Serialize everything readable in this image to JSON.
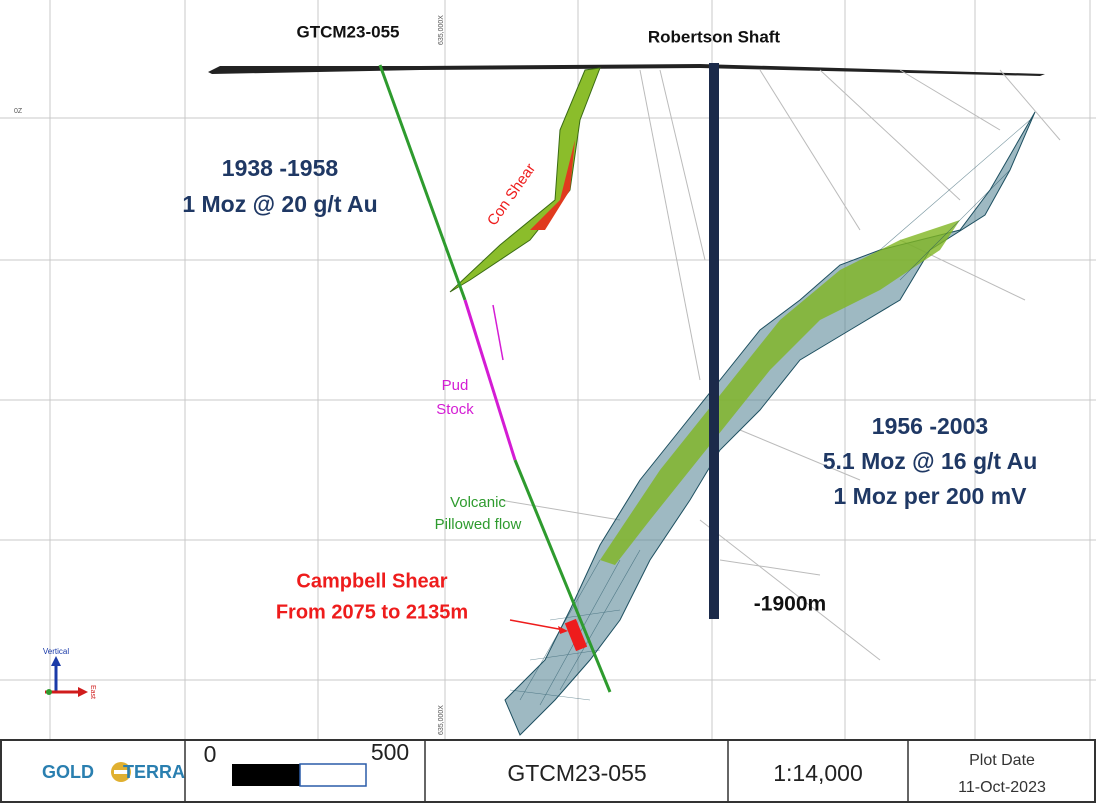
{
  "section": {
    "drillhole_label": "GTCM23-055",
    "shaft_label": "Robertson Shaft",
    "early_period": {
      "years": "1938 -1958",
      "production": "1 Moz @ 20 g/t Au"
    },
    "late_period": {
      "years": "1956 -2003",
      "production": "5.1 Moz @ 16 g/t Au",
      "rate": "1 Moz per 200 mV"
    },
    "con_shear": "Con Shear",
    "pud_stock": [
      "Pud",
      "Stock"
    ],
    "volcanic": [
      "Volcanic",
      "Pillowed flow"
    ],
    "campbell_shear": [
      "Campbell Shear",
      "From 2075 to 2135m"
    ],
    "shaft_depth": "-1900m",
    "grid_labels": {
      "easting_top": "635,000X",
      "easting_bottom": "635,000X",
      "elevation": "0Z"
    },
    "axes_icon": {
      "vertical": "Vertical",
      "east": "East"
    }
  },
  "footer": {
    "logo": [
      "GOLD",
      "TERRA"
    ],
    "scale_start": "0",
    "scale_end": "500",
    "section_name": "GTCM23-055",
    "scale": "1:14,000",
    "plot_date_label": "Plot Date",
    "plot_date": "11-Oct-2023"
  }
}
